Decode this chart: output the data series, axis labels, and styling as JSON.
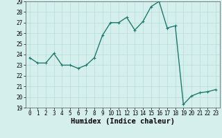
{
  "xlabel": "Humidex (Indice chaleur)",
  "x_values": [
    0,
    1,
    2,
    3,
    4,
    5,
    6,
    7,
    8,
    9,
    10,
    11,
    12,
    13,
    14,
    15,
    16,
    17,
    18,
    19,
    20,
    21,
    22,
    23
  ],
  "y_values": [
    23.7,
    23.2,
    23.2,
    24.1,
    23.0,
    23.0,
    22.7,
    23.0,
    23.7,
    25.8,
    27.0,
    27.0,
    27.5,
    26.3,
    27.1,
    28.5,
    29.0,
    26.5,
    26.7,
    19.3,
    20.1,
    20.4,
    20.5,
    20.7
  ],
  "line_color": "#1e7a6d",
  "bg_color": "#d5efec",
  "grid_color": "#b8ddd9",
  "ylim": [
    19,
    29
  ],
  "xlim": [
    -0.5,
    23.5
  ],
  "yticks": [
    19,
    20,
    21,
    22,
    23,
    24,
    25,
    26,
    27,
    28,
    29
  ],
  "xticks": [
    0,
    1,
    2,
    3,
    4,
    5,
    6,
    7,
    8,
    9,
    10,
    11,
    12,
    13,
    14,
    15,
    16,
    17,
    18,
    19,
    20,
    21,
    22,
    23
  ],
  "tick_fontsize": 5.5,
  "xlabel_fontsize": 7.5,
  "marker_size": 2.5,
  "line_width": 1.0
}
